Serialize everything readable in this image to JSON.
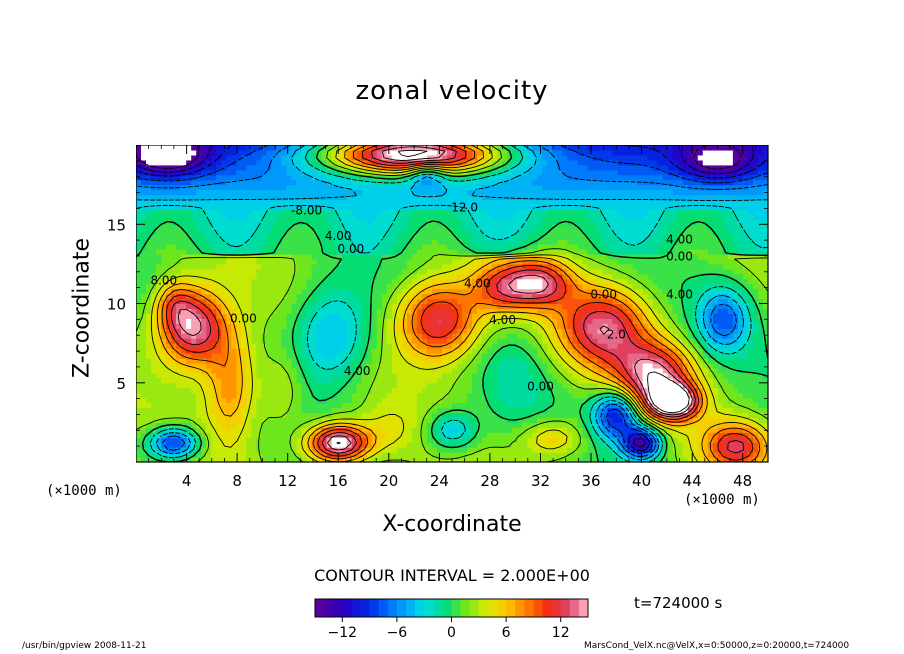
{
  "chart_data": {
    "type": "heatmap",
    "title": "zonal velocity",
    "xlabel": "X-coordinate",
    "ylabel": "Z-coordinate",
    "x_unit_label_left": "(×1000 m)",
    "x_unit_label_right": "(×1000 m)",
    "xlim": [
      0,
      50
    ],
    "ylim": [
      0,
      20
    ],
    "x_ticks": [
      4,
      8,
      12,
      16,
      20,
      24,
      28,
      32,
      36,
      40,
      44,
      48
    ],
    "y_ticks": [
      5,
      10,
      15
    ],
    "contour_interval_text": "CONTOUR INTERVAL = 2.000E+00",
    "time_text": "t=724000 s",
    "colorbar": {
      "range": [
        -15,
        15
      ],
      "ticks": [
        -12,
        -6,
        0,
        6,
        12
      ],
      "bands": 30
    },
    "contour_labels": [
      {
        "text": "-8.00",
        "x": 13.5,
        "z": 15.6
      },
      {
        "text": "12.0",
        "x": 26.0,
        "z": 15.8
      },
      {
        "text": "4.00",
        "x": 16.0,
        "z": 14.0
      },
      {
        "text": "0.00",
        "x": 17.0,
        "z": 13.2
      },
      {
        "text": "4.00",
        "x": 43.0,
        "z": 13.8
      },
      {
        "text": "0.00",
        "x": 43.0,
        "z": 12.7
      },
      {
        "text": "8.00",
        "x": 2.2,
        "z": 11.2
      },
      {
        "text": "4.00",
        "x": 43.0,
        "z": 10.3
      },
      {
        "text": "0.00",
        "x": 8.5,
        "z": 8.8
      },
      {
        "text": "4.00",
        "x": 17.5,
        "z": 5.5
      },
      {
        "text": "4.00",
        "x": 29.0,
        "z": 8.7
      },
      {
        "text": "0.00",
        "x": 32.0,
        "z": 4.5
      },
      {
        "text": "0.00",
        "x": 37.0,
        "z": 10.3
      },
      {
        "text": "2.0",
        "x": 38.0,
        "z": 7.8
      },
      {
        "text": "4.00",
        "x": 27.0,
        "z": 11.0
      }
    ],
    "extremes": [
      {
        "sign": "positive",
        "x": 4.0,
        "z": 8.5
      },
      {
        "sign": "positive",
        "x": 16.0,
        "z": 1.3
      },
      {
        "sign": "positive",
        "x": 42.5,
        "z": 3.8
      },
      {
        "sign": "positive",
        "x": 21.0,
        "z": 19.2
      },
      {
        "sign": "negative",
        "x": 37.0,
        "z": 2.5
      },
      {
        "sign": "negative",
        "x": 40.0,
        "z": 1.2
      },
      {
        "sign": "negative",
        "x": 2.5,
        "z": 19.2
      }
    ]
  },
  "footer_left": "/usr/bin/gpview   2008-11-21",
  "footer_right": "MarsCond_VelX.nc@VelX,x=0:50000,z=0:20000,t=724000"
}
